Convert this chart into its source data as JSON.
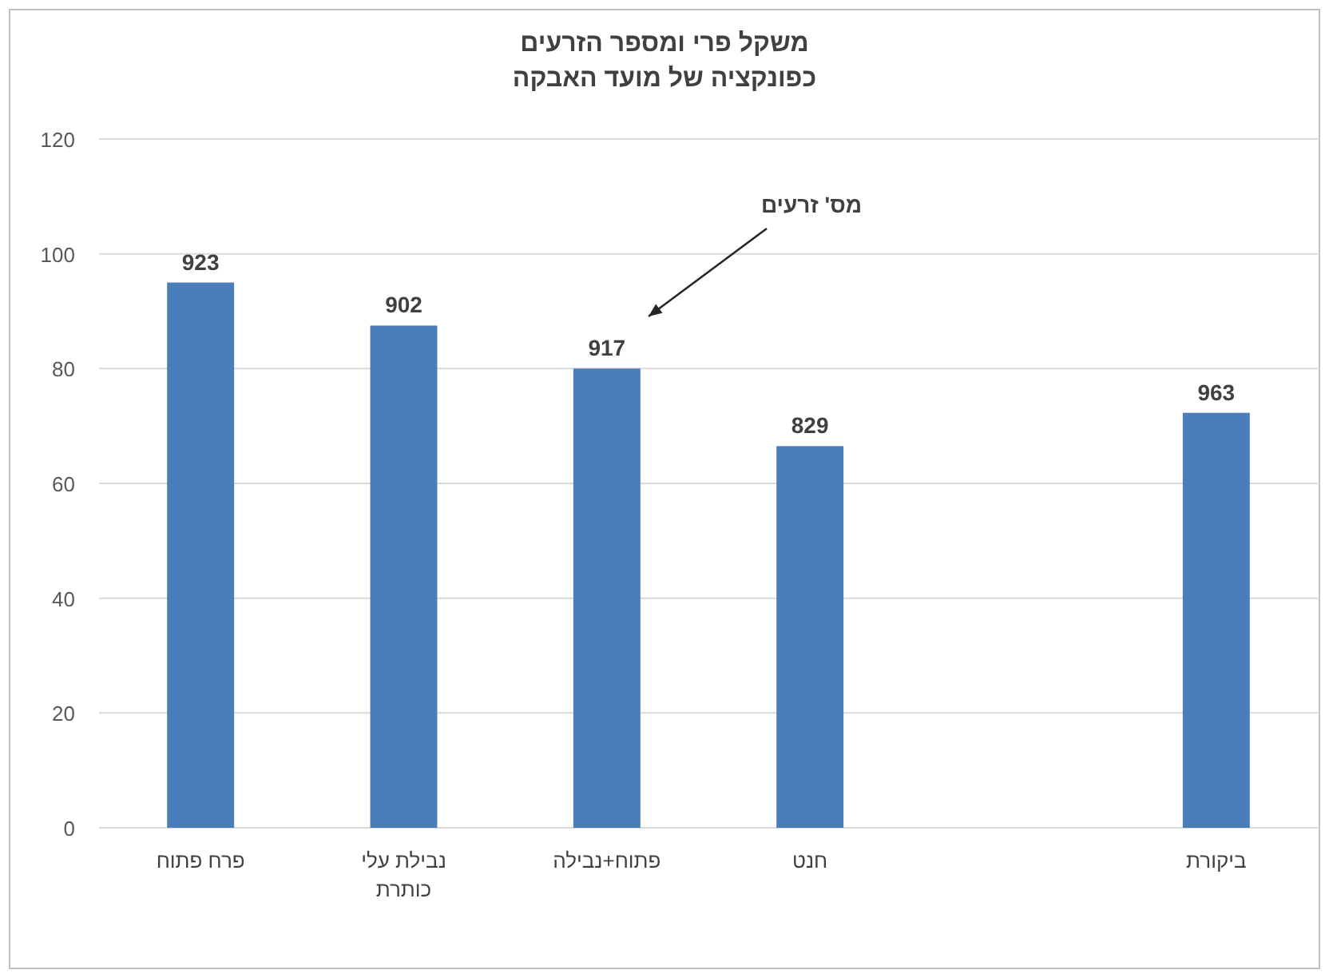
{
  "chart_data": {
    "type": "bar",
    "title": "משקל פרי ומספר הזרעים\nכפונקציה של מועד האבקה",
    "categories": [
      "פרח פתוח",
      "נבילת עלי כותרת",
      "פתוח+נבילה",
      "חנט",
      null,
      "ביקורת"
    ],
    "values": [
      95,
      87.5,
      80,
      66.5,
      null,
      72.3
    ],
    "color": "#4a7ebb",
    "ylim": [
      0,
      120
    ],
    "yticks": [
      0,
      20,
      40,
      60,
      80,
      100,
      120
    ],
    "grid": "y",
    "annotations": [
      "מס' זרעים",
      {
        "text": "923",
        "x": "פרח פתוח",
        "y": 95
      },
      {
        "text": "902",
        "x": "נבילת עלי כותרת",
        "y": 87.5
      },
      {
        "text": "917",
        "x": "פתוח+נבילה",
        "y": 80
      },
      {
        "text": "829",
        "x": "חנט",
        "y": 66.5
      },
      {
        "text": "963",
        "x": "ביקורת",
        "y": 72.3
      }
    ]
  }
}
